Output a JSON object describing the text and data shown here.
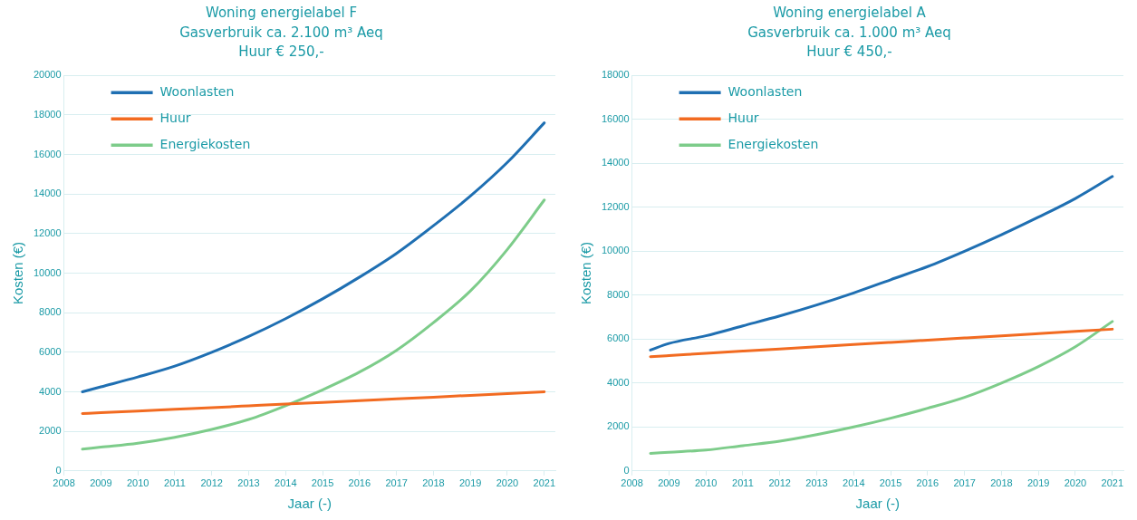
{
  "chart_data": [
    {
      "type": "line",
      "title": "Woning energielabel F\nGasverbruik ca. 2.100 m³ Aeq\nHuur € 250,-",
      "xlabel": "Jaar (-)",
      "ylabel": "Kosten (€)",
      "x": [
        2008.5,
        2009,
        2010,
        2011,
        2012,
        2013,
        2014,
        2015,
        2016,
        2017,
        2018,
        2019,
        2020,
        2021
      ],
      "series": [
        {
          "name": "Woonlasten",
          "color": "#1f6fb2",
          "values": [
            4000,
            4250,
            4750,
            5300,
            6000,
            6800,
            7700,
            8700,
            9800,
            11000,
            12400,
            13900,
            15600,
            17600
          ]
        },
        {
          "name": "Huur",
          "color": "#f26b21",
          "values": [
            2900,
            2950,
            3030,
            3120,
            3200,
            3290,
            3380,
            3460,
            3550,
            3640,
            3730,
            3820,
            3910,
            4000
          ]
        },
        {
          "name": "Energiekosten",
          "color": "#7dcc8a",
          "values": [
            1100,
            1200,
            1400,
            1700,
            2100,
            2600,
            3300,
            4100,
            5000,
            6100,
            7500,
            9100,
            11200,
            13700
          ]
        }
      ],
      "xlim": [
        2008,
        2021.3
      ],
      "xticks": [
        2008,
        2009,
        2010,
        2011,
        2012,
        2013,
        2014,
        2015,
        2016,
        2017,
        2018,
        2019,
        2020,
        2021
      ],
      "ylim": [
        0,
        20000
      ],
      "yticks": [
        0,
        2000,
        4000,
        6000,
        8000,
        10000,
        12000,
        14000,
        16000,
        18000,
        20000
      ],
      "grid": "y",
      "legend": "top left",
      "marker": "none",
      "line_style": "solid"
    },
    {
      "type": "line",
      "title": "Woning energielabel A\nGasverbruik ca. 1.000 m³ Aeq\nHuur € 450,-",
      "xlabel": "Jaar (-)",
      "ylabel": "Kosten (€)",
      "x": [
        2008.5,
        2009,
        2010,
        2011,
        2012,
        2013,
        2014,
        2015,
        2016,
        2017,
        2018,
        2019,
        2020,
        2021
      ],
      "series": [
        {
          "name": "Woonlasten",
          "color": "#1f6fb2",
          "values": [
            5500,
            5800,
            6150,
            6600,
            7050,
            7550,
            8100,
            8700,
            9300,
            10000,
            10750,
            11550,
            12400,
            13400
          ]
        },
        {
          "name": "Huur",
          "color": "#f26b21",
          "values": [
            5200,
            5250,
            5350,
            5450,
            5550,
            5650,
            5750,
            5850,
            5950,
            6050,
            6150,
            6250,
            6350,
            6450
          ]
        },
        {
          "name": "Energiekosten",
          "color": "#7dcc8a",
          "values": [
            800,
            850,
            950,
            1150,
            1350,
            1650,
            2000,
            2400,
            2850,
            3350,
            4000,
            4750,
            5650,
            6800
          ]
        }
      ],
      "xlim": [
        2008,
        2021.3
      ],
      "xticks": [
        2008,
        2009,
        2010,
        2011,
        2012,
        2013,
        2014,
        2015,
        2016,
        2017,
        2018,
        2019,
        2020,
        2021
      ],
      "ylim": [
        0,
        18000
      ],
      "yticks": [
        0,
        2000,
        4000,
        6000,
        8000,
        10000,
        12000,
        14000,
        16000,
        18000
      ],
      "grid": "y",
      "legend": "top left",
      "marker": "none",
      "line_style": "solid"
    }
  ]
}
